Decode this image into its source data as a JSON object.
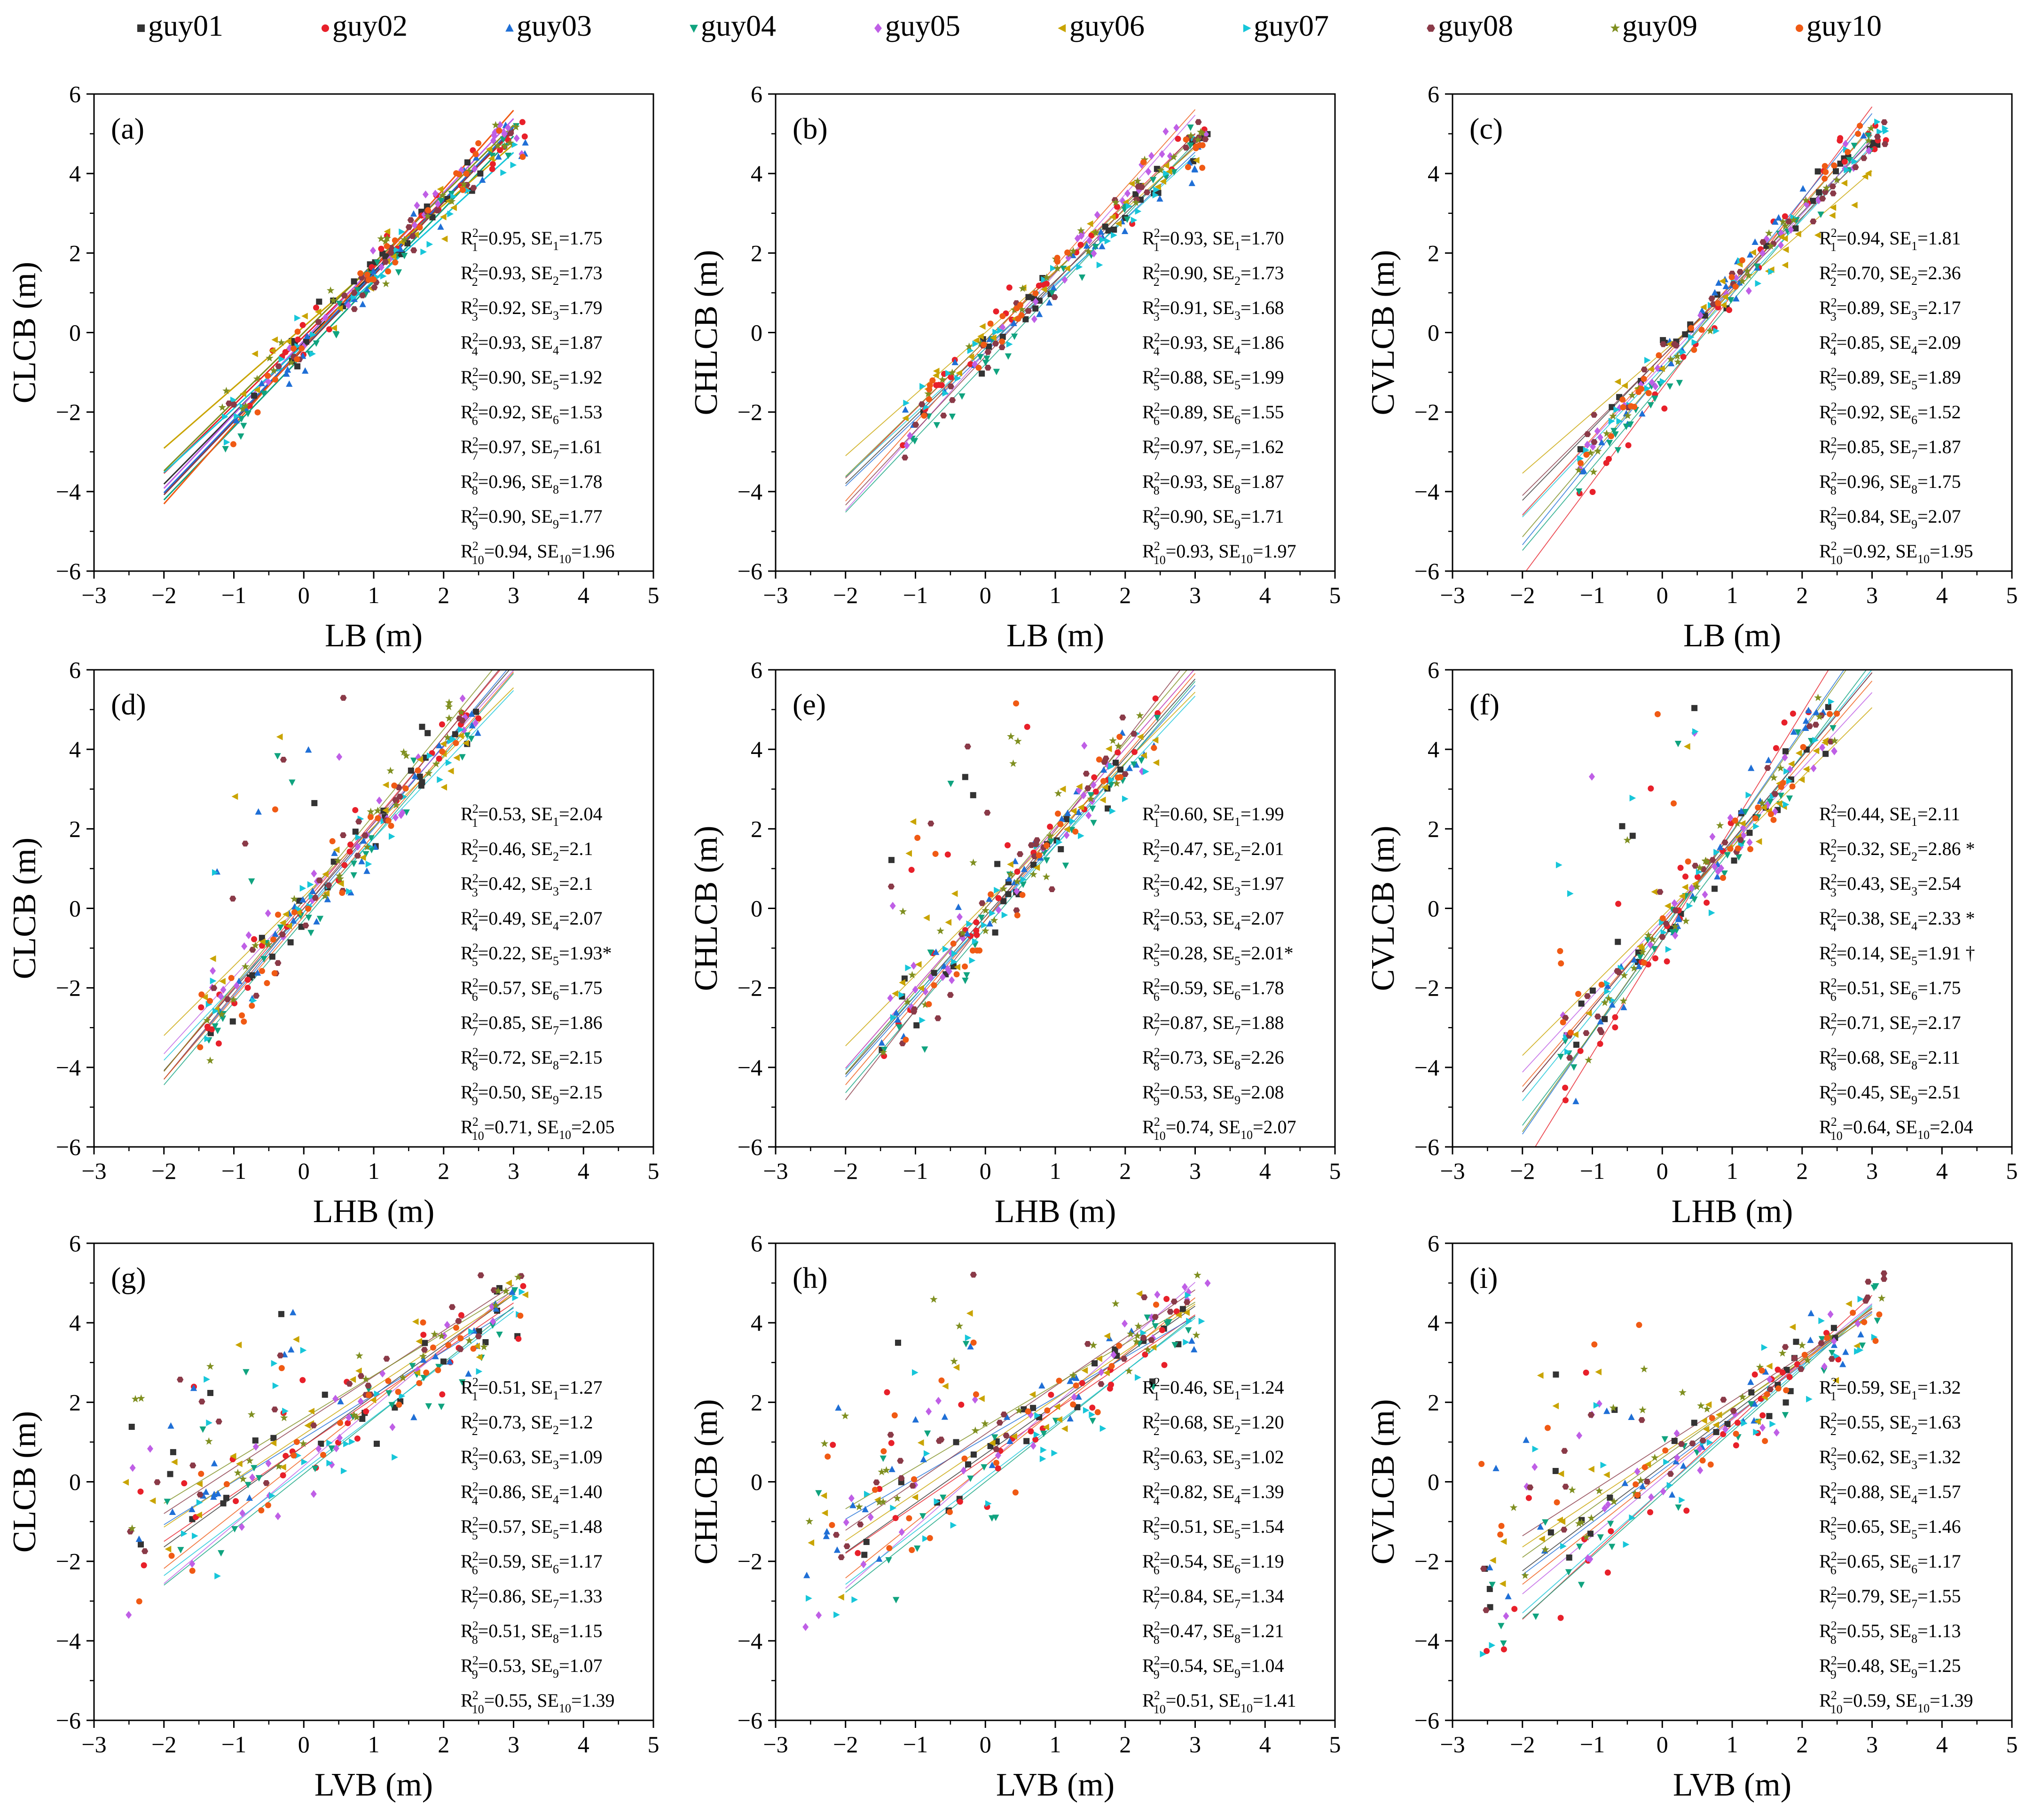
{
  "legend": {
    "series": [
      {
        "name": "guy01",
        "color": "#333333",
        "marker": "square"
      },
      {
        "name": "guy02",
        "color": "#e8202a",
        "marker": "circle"
      },
      {
        "name": "guy03",
        "color": "#1f6fd6",
        "marker": "triangle-up"
      },
      {
        "name": "guy04",
        "color": "#10a37f",
        "marker": "triangle-down"
      },
      {
        "name": "guy05",
        "color": "#bf5fe6",
        "marker": "diamond"
      },
      {
        "name": "guy06",
        "color": "#c9a400",
        "marker": "triangle-left"
      },
      {
        "name": "guy07",
        "color": "#17c6d9",
        "marker": "triangle-right"
      },
      {
        "name": "guy08",
        "color": "#8a3a48",
        "marker": "hexagon"
      },
      {
        "name": "guy09",
        "color": "#7f8f20",
        "marker": "star"
      },
      {
        "name": "guy10",
        "color": "#f05a14",
        "marker": "circle"
      }
    ]
  },
  "chart_data": [
    {
      "type": "scatter",
      "panel": "(a)",
      "xlabel": "LB (m)",
      "ylabel": "CLCB (m)",
      "xlim": [
        -3,
        5
      ],
      "ylim": [
        -6,
        6
      ],
      "xticks": [
        "−3",
        "−2",
        "−1",
        "0",
        "1",
        "2",
        "3",
        "4",
        "5"
      ],
      "yticks": [
        "−6",
        "−4",
        "−2",
        "0",
        "2",
        "4",
        "6"
      ],
      "point_range": [
        -1.2,
        3.2
      ],
      "fits": [
        {
          "r2": "0.95",
          "se": "1.75",
          "slope": 1.78,
          "intercept": -0.25
        },
        {
          "r2": "0.93",
          "se": "1.73",
          "slope": 1.72,
          "intercept": -0.1
        },
        {
          "r2": "0.92",
          "se": "1.79",
          "slope": 1.84,
          "intercept": -0.35
        },
        {
          "r2": "0.93",
          "se": "1.87",
          "slope": 1.83,
          "intercept": -0.55
        },
        {
          "r2": "0.90",
          "se": "1.92",
          "slope": 1.86,
          "intercept": -0.2
        },
        {
          "r2": "0.92",
          "se": "1.53",
          "slope": 1.53,
          "intercept": 0.15
        },
        {
          "r2": "0.97",
          "se": "1.61",
          "slope": 1.61,
          "intercept": -0.3
        },
        {
          "r2": "0.96",
          "se": "1.78",
          "slope": 1.84,
          "intercept": -0.4
        },
        {
          "r2": "0.90",
          "se": "1.77",
          "slope": 1.74,
          "intercept": 0.0
        },
        {
          "r2": "0.94",
          "se": "1.96",
          "slope": 1.98,
          "intercept": -0.35
        }
      ]
    },
    {
      "type": "scatter",
      "panel": "(b)",
      "xlabel": "LB (m)",
      "ylabel": "CHLCB (m)",
      "xlim": [
        -3,
        5
      ],
      "ylim": [
        -6,
        6
      ],
      "xticks": [
        "−3",
        "−2",
        "−1",
        "0",
        "1",
        "2",
        "3",
        "4",
        "5"
      ],
      "yticks": [
        "−6",
        "−4",
        "−2",
        "0",
        "2",
        "4",
        "6"
      ],
      "point_range": [
        -1.2,
        3.2
      ],
      "fits": [
        {
          "r2": "0.93",
          "se": "1.70",
          "slope": 1.7,
          "intercept": -0.4
        },
        {
          "r2": "0.90",
          "se": "1.73",
          "slope": 1.73,
          "intercept": -0.2
        },
        {
          "r2": "0.91",
          "se": "1.68",
          "slope": 1.68,
          "intercept": -0.5
        },
        {
          "r2": "0.93",
          "se": "1.86",
          "slope": 1.86,
          "intercept": -0.8
        },
        {
          "r2": "0.88",
          "se": "1.99",
          "slope": 1.99,
          "intercept": -0.5
        },
        {
          "r2": "0.89",
          "se": "1.55",
          "slope": 1.55,
          "intercept": 0.0
        },
        {
          "r2": "0.97",
          "se": "1.62",
          "slope": 1.62,
          "intercept": -0.4
        },
        {
          "r2": "0.93",
          "se": "1.87",
          "slope": 1.87,
          "intercept": -0.6
        },
        {
          "r2": "0.90",
          "se": "1.71",
          "slope": 1.71,
          "intercept": -0.2
        },
        {
          "r2": "0.93",
          "se": "1.97",
          "slope": 1.97,
          "intercept": -0.3
        }
      ]
    },
    {
      "type": "scatter",
      "panel": "(c)",
      "xlabel": "LB (m)",
      "ylabel": "CVLCB (m)",
      "xlim": [
        -3,
        5
      ],
      "ylim": [
        -6,
        6
      ],
      "xticks": [
        "−3",
        "−2",
        "−1",
        "0",
        "1",
        "2",
        "3",
        "4",
        "5"
      ],
      "yticks": [
        "−6",
        "−4",
        "−2",
        "0",
        "2",
        "4",
        "6"
      ],
      "point_range": [
        -1.2,
        3.2
      ],
      "fits": [
        {
          "r2": "0.94",
          "se": "1.81",
          "slope": 1.81,
          "intercept": -0.6
        },
        {
          "r2": "0.70",
          "se": "2.36",
          "slope": 2.36,
          "intercept": -1.4
        },
        {
          "r2": "0.89",
          "se": "2.17",
          "slope": 2.17,
          "intercept": -1.0
        },
        {
          "r2": "0.85",
          "se": "2.09",
          "slope": 2.09,
          "intercept": -1.3
        },
        {
          "r2": "0.89",
          "se": "1.89",
          "slope": 1.89,
          "intercept": -0.8
        },
        {
          "r2": "0.92",
          "se": "1.52",
          "slope": 1.52,
          "intercept": -0.5
        },
        {
          "r2": "0.85",
          "se": "1.87",
          "slope": 1.87,
          "intercept": -0.9
        },
        {
          "r2": "0.96",
          "se": "1.75",
          "slope": 1.75,
          "intercept": -0.6
        },
        {
          "r2": "0.84",
          "se": "2.07",
          "slope": 2.07,
          "intercept": -1.0
        },
        {
          "r2": "0.92",
          "se": "1.95",
          "slope": 1.95,
          "intercept": -0.7
        }
      ]
    },
    {
      "type": "scatter",
      "panel": "(d)",
      "xlabel": "LHB (m)",
      "ylabel": "CLCB (m)",
      "xlim": [
        -3,
        5
      ],
      "ylim": [
        -6,
        6
      ],
      "xticks": [
        "−3",
        "−2",
        "−1",
        "0",
        "1",
        "2",
        "3",
        "4",
        "5"
      ],
      "yticks": [
        "−6",
        "−4",
        "−2",
        "0",
        "2",
        "4",
        "6"
      ],
      "point_range": [
        -1.5,
        2.5
      ],
      "fits": [
        {
          "r2": "0.53",
          "se": "2.04",
          "slope": 2.04,
          "intercept": 0.0
        },
        {
          "r2": "0.46",
          "se": "2.1",
          "slope": 2.1,
          "intercept": 0.1
        },
        {
          "r2": "0.42",
          "se": "2.1",
          "slope": 2.1,
          "intercept": -0.1
        },
        {
          "r2": "0.49",
          "se": "2.07",
          "slope": 2.07,
          "intercept": -0.3
        },
        {
          "r2": "0.22",
          "se": "1.93*",
          "slope": 1.93,
          "intercept": 0.2
        },
        {
          "r2": "0.57",
          "se": "1.75",
          "slope": 1.75,
          "intercept": 0.3
        },
        {
          "r2": "0.85",
          "se": "1.86",
          "slope": 1.86,
          "intercept": -0.1
        },
        {
          "r2": "0.72",
          "se": "2.15",
          "slope": 2.15,
          "intercept": 0.0
        },
        {
          "r2": "0.50",
          "se": "2.15",
          "slope": 2.15,
          "intercept": 0.2
        },
        {
          "r2": "0.71",
          "se": "2.05",
          "slope": 2.05,
          "intercept": -0.2
        }
      ]
    },
    {
      "type": "scatter",
      "panel": "(e)",
      "xlabel": "LHB (m)",
      "ylabel": "CHLCB (m)",
      "xlim": [
        -3,
        5
      ],
      "ylim": [
        -6,
        6
      ],
      "xticks": [
        "−3",
        "−2",
        "−1",
        "0",
        "1",
        "2",
        "3",
        "4",
        "5"
      ],
      "yticks": [
        "−6",
        "−4",
        "−2",
        "0",
        "2",
        "4",
        "6"
      ],
      "point_range": [
        -1.5,
        2.5
      ],
      "fits": [
        {
          "r2": "0.60",
          "se": "1.99",
          "slope": 1.99,
          "intercept": -0.2
        },
        {
          "r2": "0.47",
          "se": "2.01",
          "slope": 2.01,
          "intercept": 0.0
        },
        {
          "r2": "0.42",
          "se": "1.97",
          "slope": 1.97,
          "intercept": -0.3
        },
        {
          "r2": "0.53",
          "se": "2.07",
          "slope": 2.07,
          "intercept": -0.5
        },
        {
          "r2": "0.28",
          "se": "2.01*",
          "slope": 2.01,
          "intercept": 0.0
        },
        {
          "r2": "0.59",
          "se": "1.78",
          "slope": 1.78,
          "intercept": 0.1
        },
        {
          "r2": "0.87",
          "se": "1.88",
          "slope": 1.88,
          "intercept": -0.3
        },
        {
          "r2": "0.73",
          "se": "2.26",
          "slope": 2.26,
          "intercept": -0.3
        },
        {
          "r2": "0.53",
          "se": "2.08",
          "slope": 2.08,
          "intercept": 0.0
        },
        {
          "r2": "0.74",
          "se": "2.07",
          "slope": 2.07,
          "intercept": -0.3
        }
      ]
    },
    {
      "type": "scatter",
      "panel": "(f)",
      "xlabel": "LHB (m)",
      "ylabel": "CVLCB (m)",
      "xlim": [
        -3,
        5
      ],
      "ylim": [
        -6,
        6
      ],
      "xticks": [
        "−3",
        "−2",
        "−1",
        "0",
        "1",
        "2",
        "3",
        "4",
        "5"
      ],
      "yticks": [
        "−6",
        "−4",
        "−2",
        "0",
        "2",
        "4",
        "6"
      ],
      "point_range": [
        -1.5,
        2.5
      ],
      "fits": [
        {
          "r2": "0.44",
          "se": "2.11",
          "slope": 2.11,
          "intercept": -0.4
        },
        {
          "r2": "0.32",
          "se": "2.86 *",
          "slope": 2.86,
          "intercept": -0.8
        },
        {
          "r2": "0.43",
          "se": "2.54",
          "slope": 2.54,
          "intercept": -0.6
        },
        {
          "r2": "0.38",
          "se": "2.33 *",
          "slope": 2.33,
          "intercept": -0.8
        },
        {
          "r2": "0.14",
          "se": "1.91 †",
          "slope": 1.91,
          "intercept": -0.3
        },
        {
          "r2": "0.51",
          "se": "1.75",
          "slope": 1.75,
          "intercept": -0.2
        },
        {
          "r2": "0.71",
          "se": "2.17",
          "slope": 2.17,
          "intercept": -0.5
        },
        {
          "r2": "0.68",
          "se": "2.11",
          "slope": 2.11,
          "intercept": -0.4
        },
        {
          "r2": "0.45",
          "se": "2.51",
          "slope": 2.51,
          "intercept": -0.6
        },
        {
          "r2": "0.64",
          "se": "2.04",
          "slope": 2.04,
          "intercept": -0.4
        }
      ]
    },
    {
      "type": "scatter",
      "panel": "(g)",
      "xlabel": "LVB (m)",
      "ylabel": "CLCB (m)",
      "xlim": [
        -3,
        5
      ],
      "ylim": [
        -6,
        6
      ],
      "xticks": [
        "−3",
        "−2",
        "−1",
        "0",
        "1",
        "2",
        "3",
        "4",
        "5"
      ],
      "yticks": [
        "−6",
        "−4",
        "−2",
        "0",
        "2",
        "4",
        "6"
      ],
      "point_range": [
        -2.6,
        3.2
      ],
      "fits": [
        {
          "r2": "0.51",
          "se": "1.27",
          "slope": 1.27,
          "intercept": 0.9
        },
        {
          "r2": "0.73",
          "se": "1.2",
          "slope": 1.2,
          "intercept": 0.9
        },
        {
          "r2": "0.63",
          "se": "1.09",
          "slope": 1.09,
          "intercept": 1.1
        },
        {
          "r2": "0.86",
          "se": "1.40",
          "slope": 1.4,
          "intercept": 0.2
        },
        {
          "r2": "0.57",
          "se": "1.48",
          "slope": 1.48,
          "intercept": 0.4
        },
        {
          "r2": "0.59",
          "se": "1.17",
          "slope": 1.17,
          "intercept": 1.2
        },
        {
          "r2": "0.86",
          "se": "1.33",
          "slope": 1.33,
          "intercept": 0.3
        },
        {
          "r2": "0.51",
          "se": "1.15",
          "slope": 1.15,
          "intercept": 1.5
        },
        {
          "r2": "0.53",
          "se": "1.07",
          "slope": 1.07,
          "intercept": 1.6
        },
        {
          "r2": "0.55",
          "se": "1.39",
          "slope": 1.39,
          "intercept": 0.6
        }
      ]
    },
    {
      "type": "scatter",
      "panel": "(h)",
      "xlabel": "LVB (m)",
      "ylabel": "CHLCB (m)",
      "xlim": [
        -3,
        5
      ],
      "ylim": [
        -6,
        6
      ],
      "xticks": [
        "−3",
        "−2",
        "−1",
        "0",
        "1",
        "2",
        "3",
        "4",
        "5"
      ],
      "yticks": [
        "−6",
        "−4",
        "−2",
        "0",
        "2",
        "4",
        "6"
      ],
      "point_range": [
        -2.6,
        3.2
      ],
      "fits": [
        {
          "r2": "0.46",
          "se": "1.24",
          "slope": 1.24,
          "intercept": 0.7
        },
        {
          "r2": "0.68",
          "se": "1.20",
          "slope": 1.2,
          "intercept": 0.6
        },
        {
          "r2": "0.63",
          "se": "1.02",
          "slope": 1.02,
          "intercept": 1.1
        },
        {
          "r2": "0.82",
          "se": "1.39",
          "slope": 1.39,
          "intercept": 0.0
        },
        {
          "r2": "0.51",
          "se": "1.54",
          "slope": 1.54,
          "intercept": 0.4
        },
        {
          "r2": "0.54",
          "se": "1.19",
          "slope": 1.19,
          "intercept": 0.9
        },
        {
          "r2": "0.84",
          "se": "1.34",
          "slope": 1.34,
          "intercept": 0.1
        },
        {
          "r2": "0.47",
          "se": "1.21",
          "slope": 1.21,
          "intercept": 1.2
        },
        {
          "r2": "0.54",
          "se": "1.04",
          "slope": 1.04,
          "intercept": 1.4
        },
        {
          "r2": "0.51",
          "se": "1.41",
          "slope": 1.41,
          "intercept": 0.4
        }
      ]
    },
    {
      "type": "scatter",
      "panel": "(i)",
      "xlabel": "LVB (m)",
      "ylabel": "CVLCB (m)",
      "xlim": [
        -3,
        5
      ],
      "ylim": [
        -6,
        6
      ],
      "xticks": [
        "−3",
        "−2",
        "−1",
        "0",
        "1",
        "2",
        "3",
        "4",
        "5"
      ],
      "yticks": [
        "−6",
        "−4",
        "−2",
        "0",
        "2",
        "4",
        "6"
      ],
      "point_range": [
        -2.6,
        3.2
      ],
      "fits": [
        {
          "r2": "0.59",
          "se": "1.32",
          "slope": 1.32,
          "intercept": 0.4
        },
        {
          "r2": "0.55",
          "se": "1.63",
          "slope": 1.63,
          "intercept": -0.2
        },
        {
          "r2": "0.62",
          "se": "1.32",
          "slope": 1.32,
          "intercept": 0.3
        },
        {
          "r2": "0.88",
          "se": "1.57",
          "slope": 1.57,
          "intercept": -0.3
        },
        {
          "r2": "0.65",
          "se": "1.46",
          "slope": 1.46,
          "intercept": 0.1
        },
        {
          "r2": "0.65",
          "se": "1.17",
          "slope": 1.17,
          "intercept": 0.7
        },
        {
          "r2": "0.79",
          "se": "1.55",
          "slope": 1.55,
          "intercept": -0.2
        },
        {
          "r2": "0.55",
          "se": "1.13",
          "slope": 1.13,
          "intercept": 0.9
        },
        {
          "r2": "0.48",
          "se": "1.25",
          "slope": 1.25,
          "intercept": 0.6
        },
        {
          "r2": "0.59",
          "se": "1.39",
          "slope": 1.39,
          "intercept": 0.2
        }
      ]
    }
  ]
}
